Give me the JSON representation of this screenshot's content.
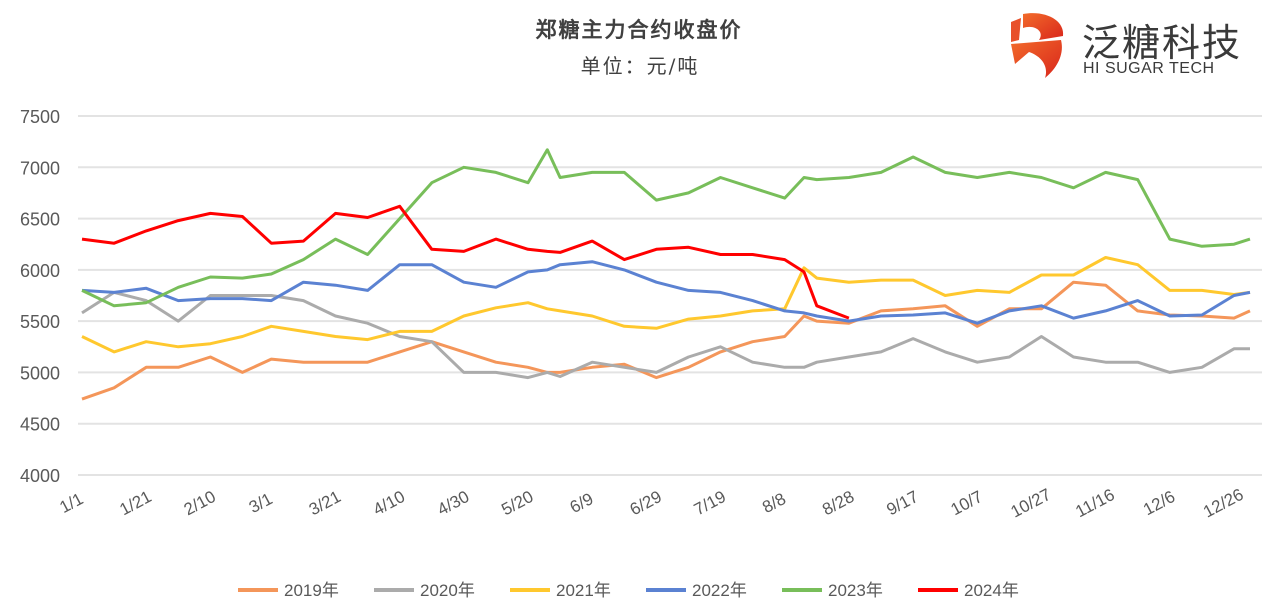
{
  "chart_data": {
    "type": "line",
    "title": "郑糖主力合约收盘价",
    "subtitle": "单位：元/吨",
    "ylim": [
      4000,
      7500
    ],
    "yticks": [
      4000,
      4500,
      5000,
      5500,
      6000,
      6500,
      7000,
      7500
    ],
    "xticks": [
      "1/1",
      "1/21",
      "2/10",
      "3/1",
      "3/21",
      "4/10",
      "4/30",
      "5/20",
      "6/9",
      "6/29",
      "7/19",
      "8/8",
      "8/28",
      "9/17",
      "10/7",
      "10/27",
      "11/16",
      "12/6",
      "12/26"
    ],
    "grid": true,
    "legend_position": "bottom",
    "x": [
      "1/1",
      "1/11",
      "1/21",
      "1/31",
      "2/10",
      "2/20",
      "3/1",
      "3/11",
      "3/21",
      "3/31",
      "4/10",
      "4/20",
      "4/30",
      "5/10",
      "5/20",
      "5/26",
      "5/30",
      "6/9",
      "6/19",
      "6/29",
      "7/9",
      "7/19",
      "7/29",
      "8/8",
      "8/14",
      "8/18",
      "8/28",
      "9/7",
      "9/17",
      "9/27",
      "10/7",
      "10/17",
      "10/27",
      "11/6",
      "11/16",
      "11/26",
      "12/6",
      "12/16",
      "12/26",
      "12/31"
    ],
    "series": [
      {
        "name": "2019年",
        "color": "#F4965A",
        "values": [
          4740,
          4850,
          5050,
          5050,
          5150,
          5000,
          5130,
          5100,
          5100,
          5100,
          5200,
          5300,
          5200,
          5100,
          5050,
          5000,
          5000,
          5050,
          5080,
          4950,
          5050,
          5200,
          5300,
          5350,
          5550,
          5500,
          5480,
          5600,
          5620,
          5650,
          5450,
          5620,
          5620,
          5880,
          5850,
          5600,
          5560,
          5550,
          5530,
          5600
        ]
      },
      {
        "name": "2020年",
        "color": "#ABABAB",
        "values": [
          5580,
          5780,
          5700,
          5500,
          5750,
          5750,
          5750,
          5700,
          5550,
          5480,
          5350,
          5300,
          5000,
          5000,
          4950,
          5000,
          4960,
          5100,
          5050,
          5000,
          5150,
          5250,
          5100,
          5050,
          5050,
          5100,
          5150,
          5200,
          5330,
          5200,
          5100,
          5150,
          5350,
          5150,
          5100,
          5100,
          5000,
          5050,
          5230,
          5230
        ]
      },
      {
        "name": "2021年",
        "color": "#FFC82E",
        "values": [
          5350,
          5200,
          5300,
          5250,
          5280,
          5350,
          5450,
          5400,
          5350,
          5320,
          5400,
          5400,
          5550,
          5630,
          5680,
          5620,
          5600,
          5550,
          5450,
          5430,
          5520,
          5550,
          5600,
          5620,
          6020,
          5920,
          5880,
          5900,
          5900,
          5750,
          5800,
          5780,
          5950,
          5950,
          6120,
          6050,
          5800,
          5800,
          5760,
          5780
        ]
      },
      {
        "name": "2022年",
        "color": "#5B82D2",
        "values": [
          5800,
          5780,
          5820,
          5700,
          5720,
          5720,
          5700,
          5880,
          5850,
          5800,
          6050,
          6050,
          5880,
          5830,
          5980,
          6000,
          6050,
          6080,
          6000,
          5880,
          5800,
          5780,
          5700,
          5600,
          5580,
          5550,
          5500,
          5550,
          5560,
          5580,
          5480,
          5600,
          5650,
          5530,
          5600,
          5700,
          5550,
          5560,
          5750,
          5780
        ]
      },
      {
        "name": "2023年",
        "color": "#78BE5A",
        "values": [
          5800,
          5650,
          5680,
          5830,
          5930,
          5920,
          5960,
          6100,
          6300,
          6150,
          6500,
          6850,
          7000,
          6950,
          6850,
          7170,
          6900,
          6950,
          6950,
          6680,
          6750,
          6900,
          6800,
          6700,
          6900,
          6880,
          6900,
          6950,
          7100,
          6950,
          6900,
          6950,
          6900,
          6800,
          6950,
          6880,
          6300,
          6230,
          6250,
          6300
        ]
      },
      {
        "name": "2024年",
        "color": "#FF0000",
        "values": [
          6300,
          6260,
          6380,
          6480,
          6550,
          6520,
          6260,
          6280,
          6550,
          6510,
          6620,
          6200,
          6180,
          6300,
          6200,
          6180,
          6170,
          6280,
          6100,
          6200,
          6220,
          6150,
          6150,
          6100,
          5980,
          5650,
          5530,
          null,
          null,
          null,
          null,
          null,
          null,
          null,
          null,
          null,
          null,
          null,
          null,
          null
        ]
      }
    ]
  },
  "logo": {
    "cn": "泛糖科技",
    "en": "HI SUGAR TECH"
  }
}
